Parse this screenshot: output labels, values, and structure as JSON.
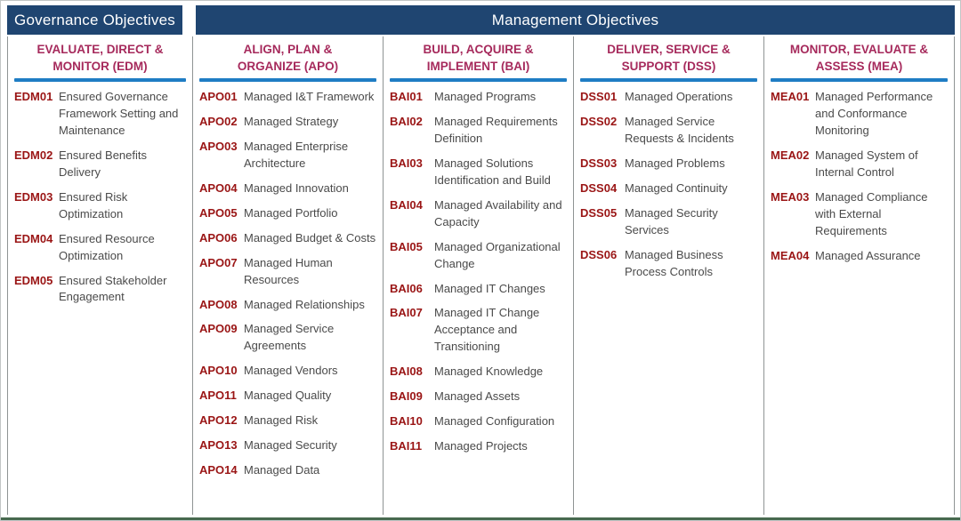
{
  "header": {
    "governance_label": "Governance Objectives",
    "management_label": "Management Objectives"
  },
  "colors": {
    "header_bar": "#1F4571",
    "column_title": "#A62A5C",
    "title_underline": "#1F7DC4",
    "code": "#9A1515",
    "body_text": "#4A4A4A",
    "column_divider": "#8F9494",
    "bottom_line": "#47694F"
  },
  "columns": [
    {
      "id": "EDM",
      "title": [
        "EVALUATE, DIRECT &",
        "MONITOR (EDM)"
      ],
      "items": [
        {
          "code": "EDM01",
          "label": "Ensured Governance Framework Setting and Maintenance"
        },
        {
          "code": "EDM02",
          "label": "Ensured Benefits Delivery"
        },
        {
          "code": "EDM03",
          "label": "Ensured Risk Optimization"
        },
        {
          "code": "EDM04",
          "label": "Ensured Resource Optimization"
        },
        {
          "code": "EDM05",
          "label": "Ensured Stakeholder Engagement"
        }
      ]
    },
    {
      "id": "APO",
      "title": [
        "ALIGN, PLAN &",
        "ORGANIZE (APO)"
      ],
      "items": [
        {
          "code": "APO01",
          "label": "Managed I&T Framework"
        },
        {
          "code": "APO02",
          "label": "Managed Strategy"
        },
        {
          "code": "APO03",
          "label": "Managed Enterprise Architecture"
        },
        {
          "code": "APO04",
          "label": "Managed Innovation"
        },
        {
          "code": "APO05",
          "label": "Managed Portfolio"
        },
        {
          "code": "APO06",
          "label": "Managed Budget & Costs"
        },
        {
          "code": "APO07",
          "label": "Managed Human Resources"
        },
        {
          "code": "APO08",
          "label": "Managed Relationships"
        },
        {
          "code": "APO09",
          "label": "Managed Service Agreements"
        },
        {
          "code": "APO10",
          "label": "Managed Vendors"
        },
        {
          "code": "APO11",
          "label": "Managed Quality"
        },
        {
          "code": "APO12",
          "label": "Managed Risk"
        },
        {
          "code": "APO13",
          "label": "Managed Security"
        },
        {
          "code": "APO14",
          "label": "Managed Data"
        }
      ]
    },
    {
      "id": "BAI",
      "title": [
        "BUILD, ACQUIRE &",
        "IMPLEMENT (BAI)"
      ],
      "items": [
        {
          "code": "BAI01",
          "label": "Managed Programs"
        },
        {
          "code": "BAI02",
          "label": "Managed Requirements Definition"
        },
        {
          "code": "BAI03",
          "label": "Managed Solutions Identification and Build"
        },
        {
          "code": "BAI04",
          "label": "Managed Availability and Capacity"
        },
        {
          "code": "BAI05",
          "label": "Managed Organizational Change"
        },
        {
          "code": "BAI06",
          "label": "Managed IT Changes"
        },
        {
          "code": "BAI07",
          "label": "Managed IT Change Acceptance and Transitioning"
        },
        {
          "code": "BAI08",
          "label": "Managed Knowledge"
        },
        {
          "code": "BAI09",
          "label": "Managed Assets"
        },
        {
          "code": "BAI10",
          "label": "Managed Configuration"
        },
        {
          "code": "BAI11",
          "label": "Managed Projects"
        }
      ]
    },
    {
      "id": "DSS",
      "title": [
        "DELIVER, SERVICE &",
        "SUPPORT (DSS)"
      ],
      "items": [
        {
          "code": "DSS01",
          "label": "Managed Operations"
        },
        {
          "code": "DSS02",
          "label": "Managed Service Requests & Incidents"
        },
        {
          "code": "DSS03",
          "label": "Managed Problems"
        },
        {
          "code": "DSS04",
          "label": "Managed Continuity"
        },
        {
          "code": "DSS05",
          "label": "Managed Security Services"
        },
        {
          "code": "DSS06",
          "label": "Managed Business Process Controls"
        }
      ]
    },
    {
      "id": "MEA",
      "title": [
        "MONITOR, EVALUATE &",
        "ASSESS (MEA)"
      ],
      "items": [
        {
          "code": "MEA01",
          "label": "Managed Performance and Conformance Monitoring"
        },
        {
          "code": "MEA02",
          "label": "Managed System of Internal Control"
        },
        {
          "code": "MEA03",
          "label": "Managed Compliance with External Requirements"
        },
        {
          "code": "MEA04",
          "label": "Managed Assurance"
        }
      ]
    }
  ]
}
